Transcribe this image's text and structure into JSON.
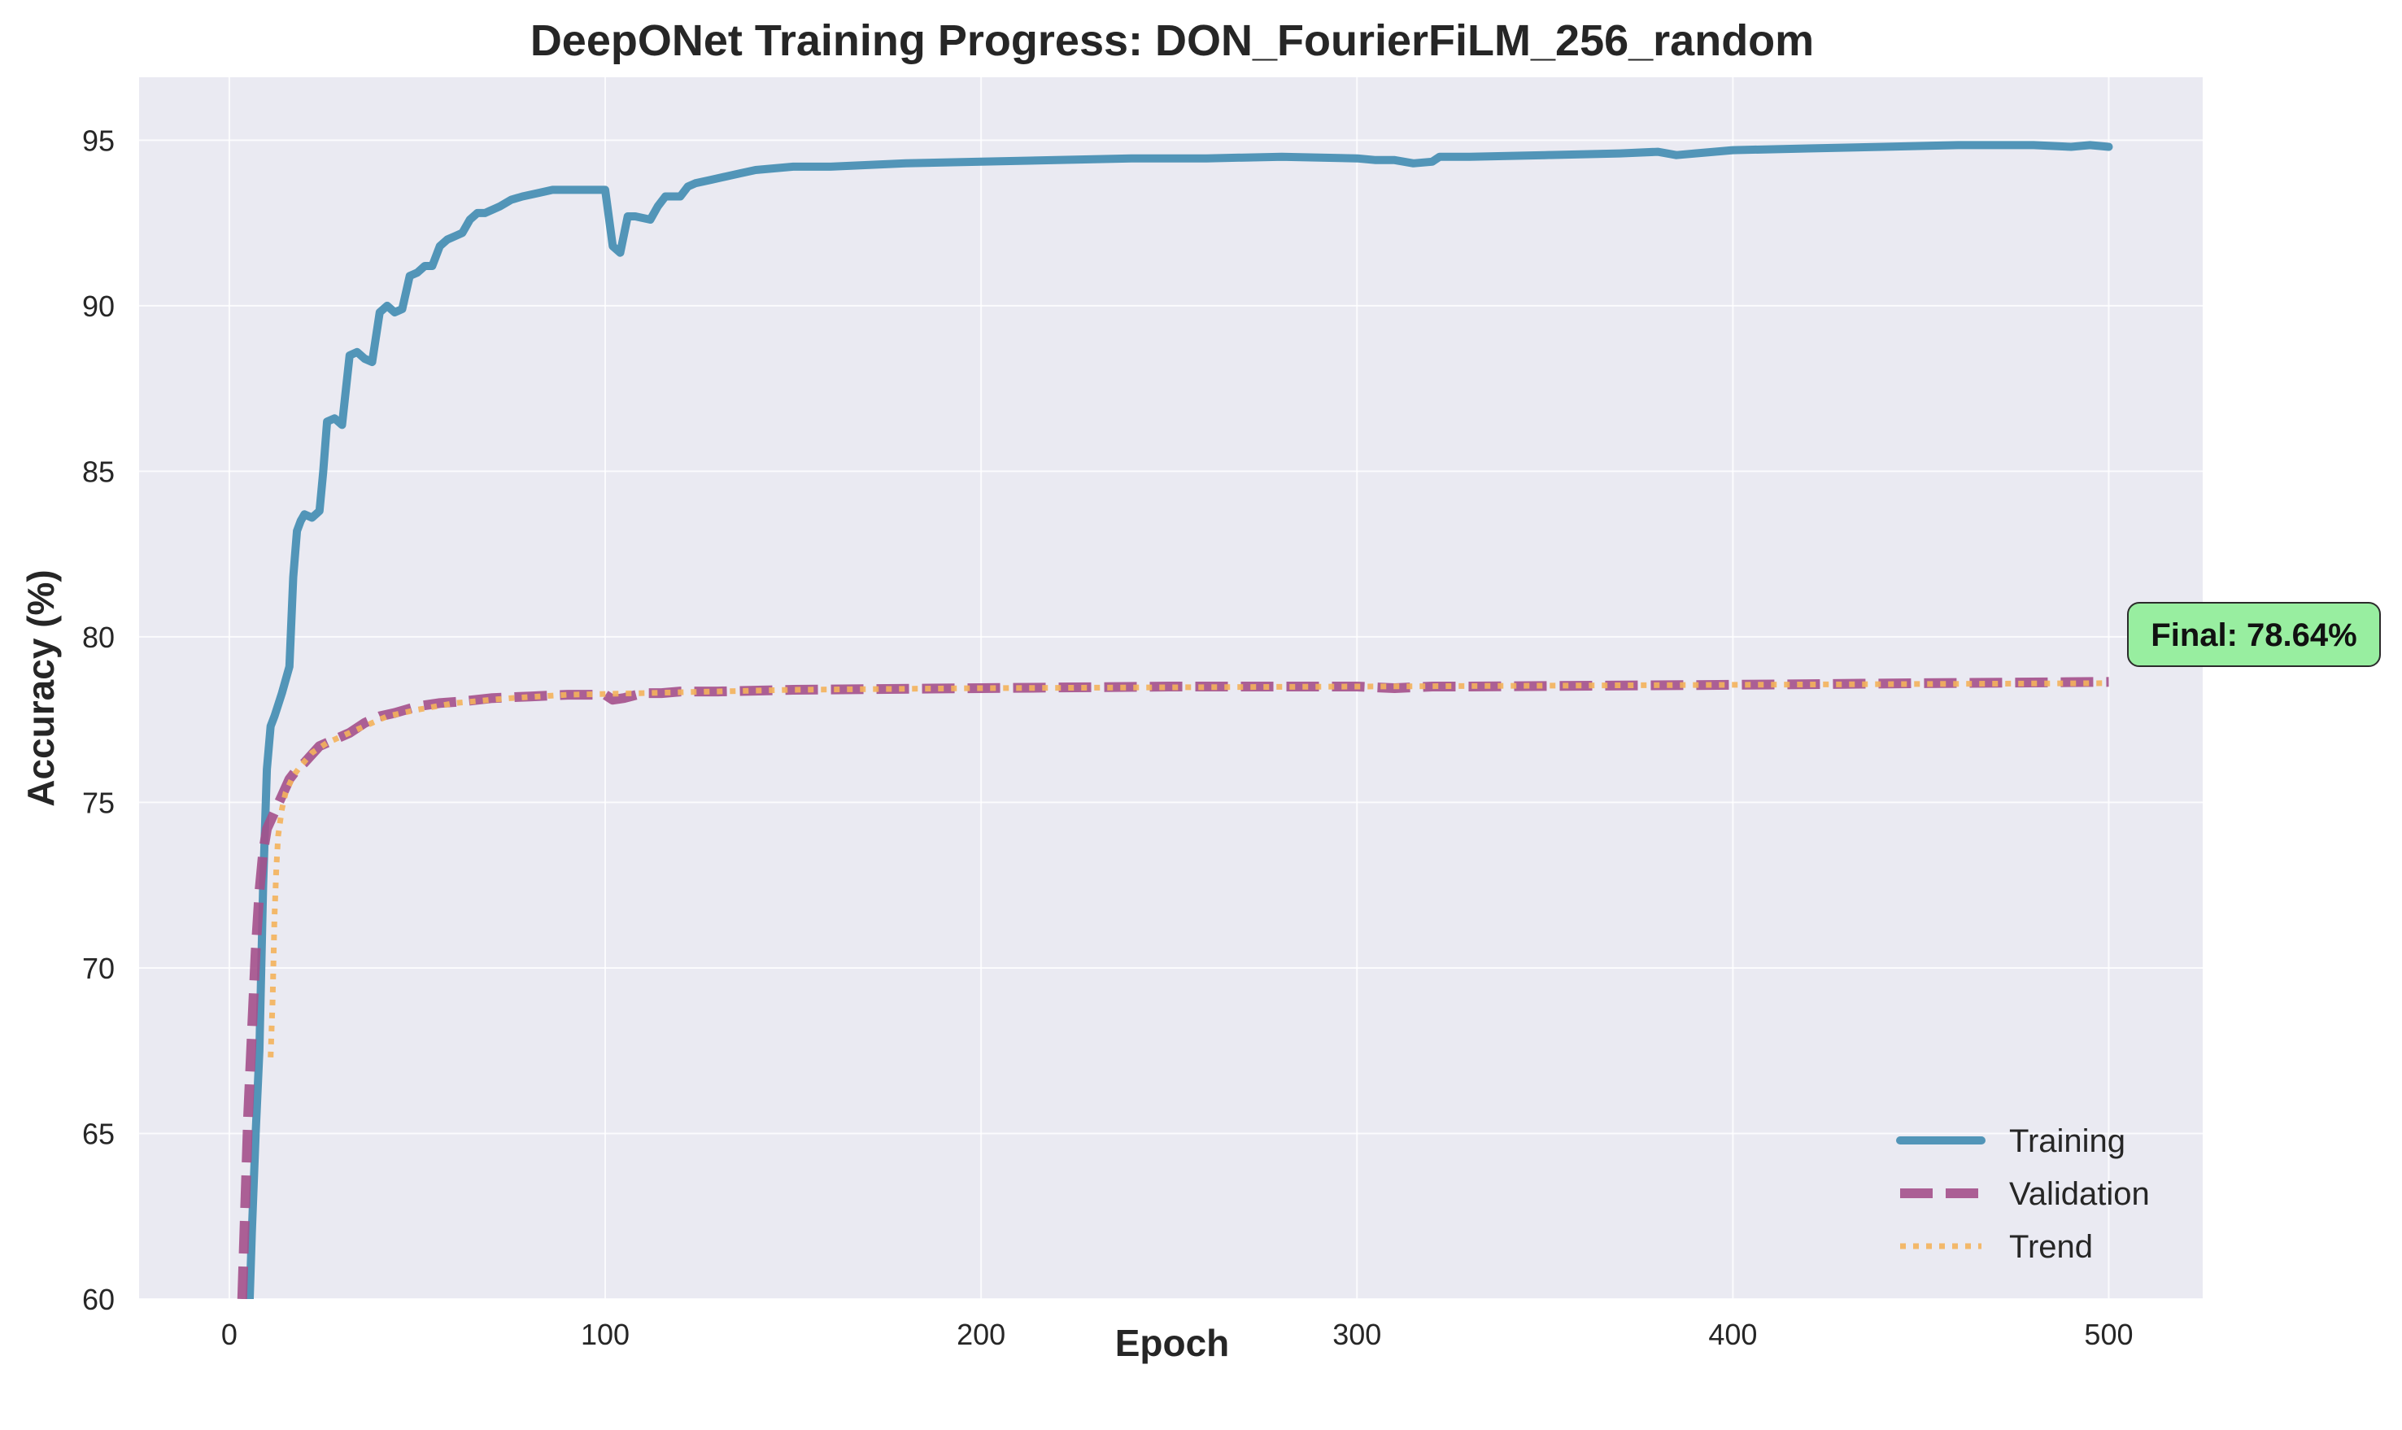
{
  "chart_data": {
    "type": "line",
    "title": "DeepONet Training Progress: DON_FourierFiLM_256_random",
    "xlabel": "Epoch",
    "ylabel": "Accuracy (%)",
    "xlim": [
      -24,
      525
    ],
    "ylim": [
      60,
      96.9
    ],
    "xticks": [
      0,
      100,
      200,
      300,
      400,
      500
    ],
    "yticks": [
      60,
      65,
      70,
      75,
      80,
      85,
      90,
      95
    ],
    "grid": true,
    "legend_position": "lower right",
    "colors": {
      "background": "#eaeaf2",
      "grid": "#ffffff",
      "training": "#4a90b4",
      "validation": "#a4508b",
      "trend": "#f4b25b",
      "final_box": "#98eea0"
    },
    "series": [
      {
        "name": "Training",
        "style": "solid",
        "x": [
          5,
          6,
          7,
          8,
          9,
          10,
          11,
          12,
          14,
          16,
          17,
          18,
          19,
          20,
          22,
          24,
          25,
          26,
          28,
          30,
          32,
          34,
          36,
          38,
          40,
          42,
          44,
          46,
          48,
          50,
          52,
          54,
          56,
          58,
          60,
          62,
          64,
          66,
          68,
          70,
          72,
          75,
          78,
          82,
          86,
          90,
          94,
          98,
          100,
          102,
          104,
          106,
          108,
          112,
          114,
          116,
          118,
          120,
          122,
          124,
          128,
          132,
          136,
          140,
          150,
          160,
          180,
          200,
          220,
          240,
          260,
          280,
          300,
          305,
          310,
          315,
          320,
          322,
          330,
          350,
          370,
          380,
          385,
          390,
          400,
          420,
          440,
          460,
          470,
          480,
          490,
          495,
          500
        ],
        "y": [
          58.5,
          62.0,
          65.0,
          67.5,
          72.5,
          76.0,
          77.3,
          77.6,
          78.3,
          79.1,
          81.8,
          83.2,
          83.5,
          83.7,
          83.6,
          83.8,
          85.0,
          86.5,
          86.6,
          86.4,
          88.5,
          88.6,
          88.4,
          88.3,
          89.8,
          90.0,
          89.8,
          89.9,
          90.9,
          91.0,
          91.2,
          91.2,
          91.8,
          92.0,
          92.1,
          92.2,
          92.6,
          92.8,
          92.8,
          92.9,
          93.0,
          93.2,
          93.3,
          93.4,
          93.5,
          93.5,
          93.5,
          93.5,
          93.5,
          91.8,
          91.6,
          92.7,
          92.7,
          92.6,
          93.0,
          93.3,
          93.3,
          93.3,
          93.6,
          93.7,
          93.8,
          93.9,
          94.0,
          94.1,
          94.2,
          94.2,
          94.3,
          94.35,
          94.4,
          94.45,
          94.45,
          94.5,
          94.45,
          94.4,
          94.4,
          94.3,
          94.35,
          94.5,
          94.5,
          94.55,
          94.6,
          94.65,
          94.55,
          94.6,
          94.7,
          94.75,
          94.8,
          94.85,
          94.85,
          94.85,
          94.8,
          94.85,
          94.8
        ]
      },
      {
        "name": "Validation",
        "style": "dashed",
        "x": [
          2,
          3,
          4,
          5,
          6,
          7,
          8,
          9,
          10,
          12,
          14,
          16,
          18,
          20,
          24,
          28,
          32,
          36,
          40,
          44,
          50,
          56,
          62,
          70,
          80,
          90,
          95,
          100,
          102,
          105,
          110,
          115,
          120,
          130,
          150,
          200,
          250,
          300,
          310,
          320,
          330,
          400,
          450,
          500
        ],
        "y": [
          54.5,
          58.5,
          62.0,
          65.5,
          68.0,
          70.5,
          72.3,
          73.5,
          74.2,
          74.7,
          75.2,
          75.7,
          76.0,
          76.2,
          76.7,
          76.9,
          77.1,
          77.4,
          77.6,
          77.7,
          77.9,
          78.0,
          78.05,
          78.15,
          78.2,
          78.25,
          78.25,
          78.25,
          78.1,
          78.15,
          78.3,
          78.3,
          78.35,
          78.35,
          78.4,
          78.45,
          78.5,
          78.5,
          78.45,
          78.5,
          78.5,
          78.55,
          78.6,
          78.64
        ]
      },
      {
        "name": "Trend",
        "style": "dotted",
        "x": [
          11,
          11.5,
          12,
          12.5,
          13,
          14,
          15,
          17,
          19,
          22,
          26,
          30,
          36,
          42,
          50,
          60,
          75,
          90,
          110,
          150,
          200,
          300,
          400,
          500
        ],
        "y": [
          67.3,
          69.0,
          71.5,
          73.0,
          74.0,
          74.8,
          75.3,
          75.8,
          76.1,
          76.5,
          76.8,
          77.0,
          77.3,
          77.6,
          77.8,
          78.0,
          78.15,
          78.25,
          78.3,
          78.4,
          78.45,
          78.5,
          78.55,
          78.6
        ]
      }
    ],
    "annotation": {
      "text": "Final: 78.64%",
      "x": 500,
      "y": 78.64
    }
  }
}
